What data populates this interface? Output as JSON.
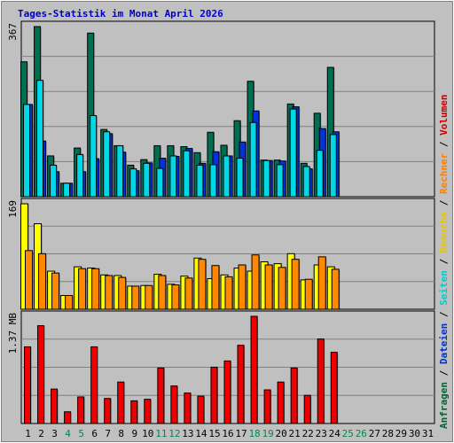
{
  "title": "Tages-Statistik im Monat April 2026",
  "right_legend": [
    {
      "text": "Anfragen",
      "color": "#006633"
    },
    {
      "text": " / ",
      "color": "#000000"
    },
    {
      "text": "Dateien",
      "color": "#0033cc"
    },
    {
      "text": " / ",
      "color": "#000000"
    },
    {
      "text": "Seiten",
      "color": "#00cccc"
    },
    {
      "text": " / ",
      "color": "#000000"
    },
    {
      "text": "Besuche",
      "color": "#e6c800"
    },
    {
      "text": " / ",
      "color": "#000000"
    },
    {
      "text": "Rechner",
      "color": "#ff8000"
    },
    {
      "text": " / ",
      "color": "#000000"
    },
    {
      "text": "Volumen",
      "color": "#cc0000"
    }
  ],
  "colors": {
    "background": "#c0c0c0",
    "title": "#0000cc",
    "hits": "#006e50",
    "files": "#0033dd",
    "pages": "#00d8e8",
    "visits": "#ffff00",
    "sites": "#ff8800",
    "kbytes": "#ee0000",
    "day_weekend": "#00884f",
    "day_weekday": "#000000"
  },
  "chart_data": [
    {
      "type": "bar",
      "name": "Anfragen / Dateien / Seiten",
      "y_max_label": "367",
      "ylim": [
        0,
        367
      ],
      "grid": true,
      "categories": [
        "1",
        "2",
        "3",
        "4",
        "5",
        "6",
        "7",
        "8",
        "9",
        "10",
        "11",
        "12",
        "13",
        "14",
        "15",
        "16",
        "17",
        "18",
        "19",
        "20",
        "21",
        "22",
        "23",
        "24",
        "25",
        "26",
        "27",
        "28",
        "29",
        "30",
        "31"
      ],
      "weekend_days": [
        "4",
        "5",
        "11",
        "12",
        "18",
        "19",
        "25",
        "26"
      ],
      "series": [
        {
          "name": "Anfragen",
          "values": [
            291,
            367,
            88,
            29,
            105,
            353,
            145,
            110,
            68,
            80,
            110,
            110,
            108,
            95,
            139,
            111,
            164,
            249,
            79,
            79,
            200,
            72,
            180,
            279,
            0,
            0,
            0,
            0,
            0,
            0,
            0
          ]
        },
        {
          "name": "Dateien",
          "values": [
            199,
            120,
            54,
            29,
            54,
            82,
            136,
            96,
            56,
            73,
            83,
            87,
            104,
            72,
            97,
            88,
            118,
            185,
            78,
            77,
            194,
            60,
            147,
            140,
            0,
            0,
            0,
            0,
            0,
            0,
            0
          ]
        },
        {
          "name": "Seiten",
          "values": [
            199,
            251,
            68,
            29,
            91,
            175,
            140,
            110,
            60,
            72,
            61,
            88,
            99,
            68,
            69,
            88,
            83,
            160,
            78,
            69,
            189,
            65,
            100,
            134,
            0,
            0,
            0,
            0,
            0,
            0,
            0
          ]
        }
      ]
    },
    {
      "type": "bar",
      "name": "Besuche / Rechner",
      "y_max_label": "169",
      "ylim": [
        0,
        169
      ],
      "grid": true,
      "categories": [
        "1",
        "2",
        "3",
        "4",
        "5",
        "6",
        "7",
        "8",
        "9",
        "10",
        "11",
        "12",
        "13",
        "14",
        "15",
        "16",
        "17",
        "18",
        "19",
        "20",
        "21",
        "22",
        "23",
        "24",
        "25",
        "26",
        "27",
        "28",
        "29",
        "30",
        "31"
      ],
      "series": [
        {
          "name": "Besuche",
          "values": [
            169,
            137,
            61,
            22,
            68,
            66,
            55,
            54,
            37,
            38,
            56,
            40,
            53,
            82,
            49,
            55,
            66,
            61,
            76,
            73,
            89,
            47,
            71,
            68,
            0,
            0,
            0,
            0,
            0,
            0,
            0
          ]
        },
        {
          "name": "Rechner",
          "values": [
            94,
            89,
            58,
            22,
            65,
            65,
            54,
            51,
            37,
            38,
            54,
            39,
            50,
            80,
            70,
            52,
            71,
            87,
            71,
            67,
            80,
            48,
            84,
            64,
            0,
            0,
            0,
            0,
            0,
            0,
            0
          ]
        }
      ]
    },
    {
      "type": "bar",
      "name": "Volumen",
      "y_max_label": "1.37 MB",
      "ylim": [
        0,
        1.37
      ],
      "grid": true,
      "categories": [
        "1",
        "2",
        "3",
        "4",
        "5",
        "6",
        "7",
        "8",
        "9",
        "10",
        "11",
        "12",
        "13",
        "14",
        "15",
        "16",
        "17",
        "18",
        "19",
        "20",
        "21",
        "22",
        "23",
        "24",
        "25",
        "26",
        "27",
        "28",
        "29",
        "30",
        "31"
      ],
      "series": [
        {
          "name": "Volumen",
          "values": [
            0.98,
            1.25,
            0.44,
            0.15,
            0.34,
            0.98,
            0.32,
            0.53,
            0.29,
            0.31,
            0.71,
            0.48,
            0.39,
            0.35,
            0.72,
            0.8,
            1.0,
            1.37,
            0.43,
            0.53,
            0.71,
            0.36,
            1.08,
            0.91,
            0,
            0,
            0,
            0,
            0,
            0,
            0
          ]
        }
      ]
    }
  ]
}
